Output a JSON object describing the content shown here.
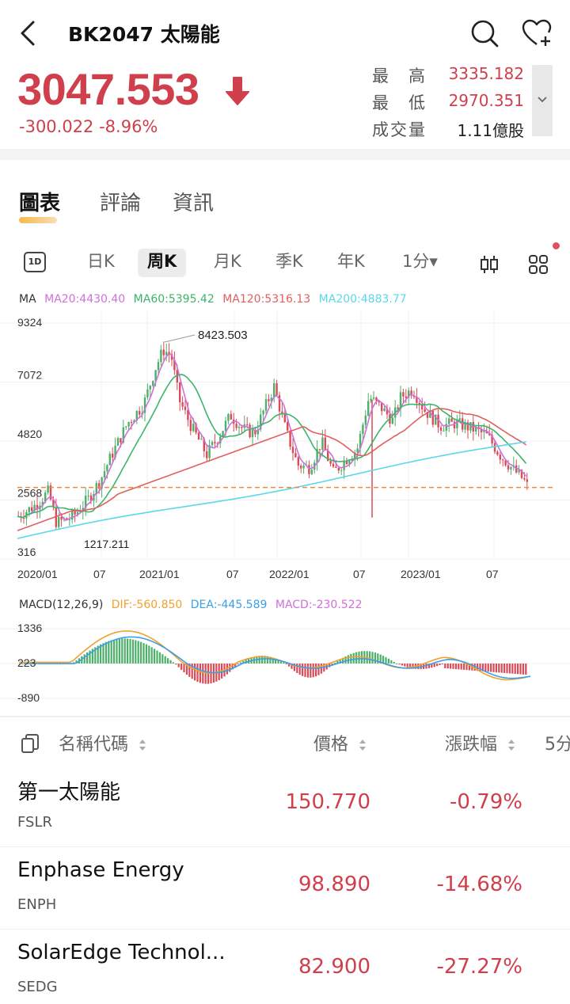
{
  "header": {
    "title": "BK2047  太陽能",
    "price": "3047.553",
    "change": "-300.022 -8.96%",
    "stats": [
      {
        "label": "最　高",
        "value": "3335.182"
      },
      {
        "label": "最　低",
        "value": "2970.351"
      },
      {
        "label": "成交量",
        "value": "1.11億股"
      }
    ]
  },
  "tabs": [
    "圖表",
    "評論",
    "資訊"
  ],
  "periods": {
    "icon_label": "1D",
    "items": [
      "日K",
      "周K",
      "月K",
      "季K",
      "年K",
      "1分▾"
    ],
    "active": "周K"
  },
  "ma_legend": {
    "title": "MA",
    "items": [
      {
        "text": "MA20:4430.40",
        "color": "#d070d8"
      },
      {
        "text": "MA60:5395.42",
        "color": "#3cb56a"
      },
      {
        "text": "MA120:5316.13",
        "color": "#e06060"
      },
      {
        "text": "MA200:4883.77",
        "color": "#5ad8e8"
      }
    ]
  },
  "chart_data": [
    {
      "type": "candlestick",
      "y_ticks": [
        "9324",
        "7072",
        "4820",
        "2568",
        "316"
      ],
      "x_ticks": [
        "2020/01",
        "07",
        "2021/01",
        "07",
        "2022/01",
        "07",
        "2023/01",
        "07"
      ],
      "annotations": [
        "8423.503",
        "1217.211"
      ],
      "ylim": [
        316,
        9324
      ],
      "reference_line": 3047.553
    },
    {
      "type": "bar",
      "y_ticks": [
        "1336",
        "223",
        "-890"
      ],
      "ylim": [
        -890,
        1336
      ]
    }
  ],
  "macd_legend": {
    "title": "MACD(12,26,9)",
    "items": [
      {
        "text": "DIF:-560.850",
        "color": "#f0a030"
      },
      {
        "text": "DEA:-445.589",
        "color": "#3a9ee8"
      },
      {
        "text": "MACD:-230.522",
        "color": "#d070d8"
      }
    ]
  },
  "list_header": {
    "name": "名稱代碼",
    "price": "價格",
    "change": "漲跌幅",
    "extra": "5分"
  },
  "stocks": [
    {
      "name": "第一太陽能",
      "code": "FSLR",
      "price": "150.770",
      "change": "-0.79%"
    },
    {
      "name": "Enphase Energy",
      "code": "ENPH",
      "price": "98.890",
      "change": "-14.68%"
    },
    {
      "name": "SolarEdge Technol...",
      "code": "SEDG",
      "price": "82.900",
      "change": "-27.27%"
    }
  ]
}
